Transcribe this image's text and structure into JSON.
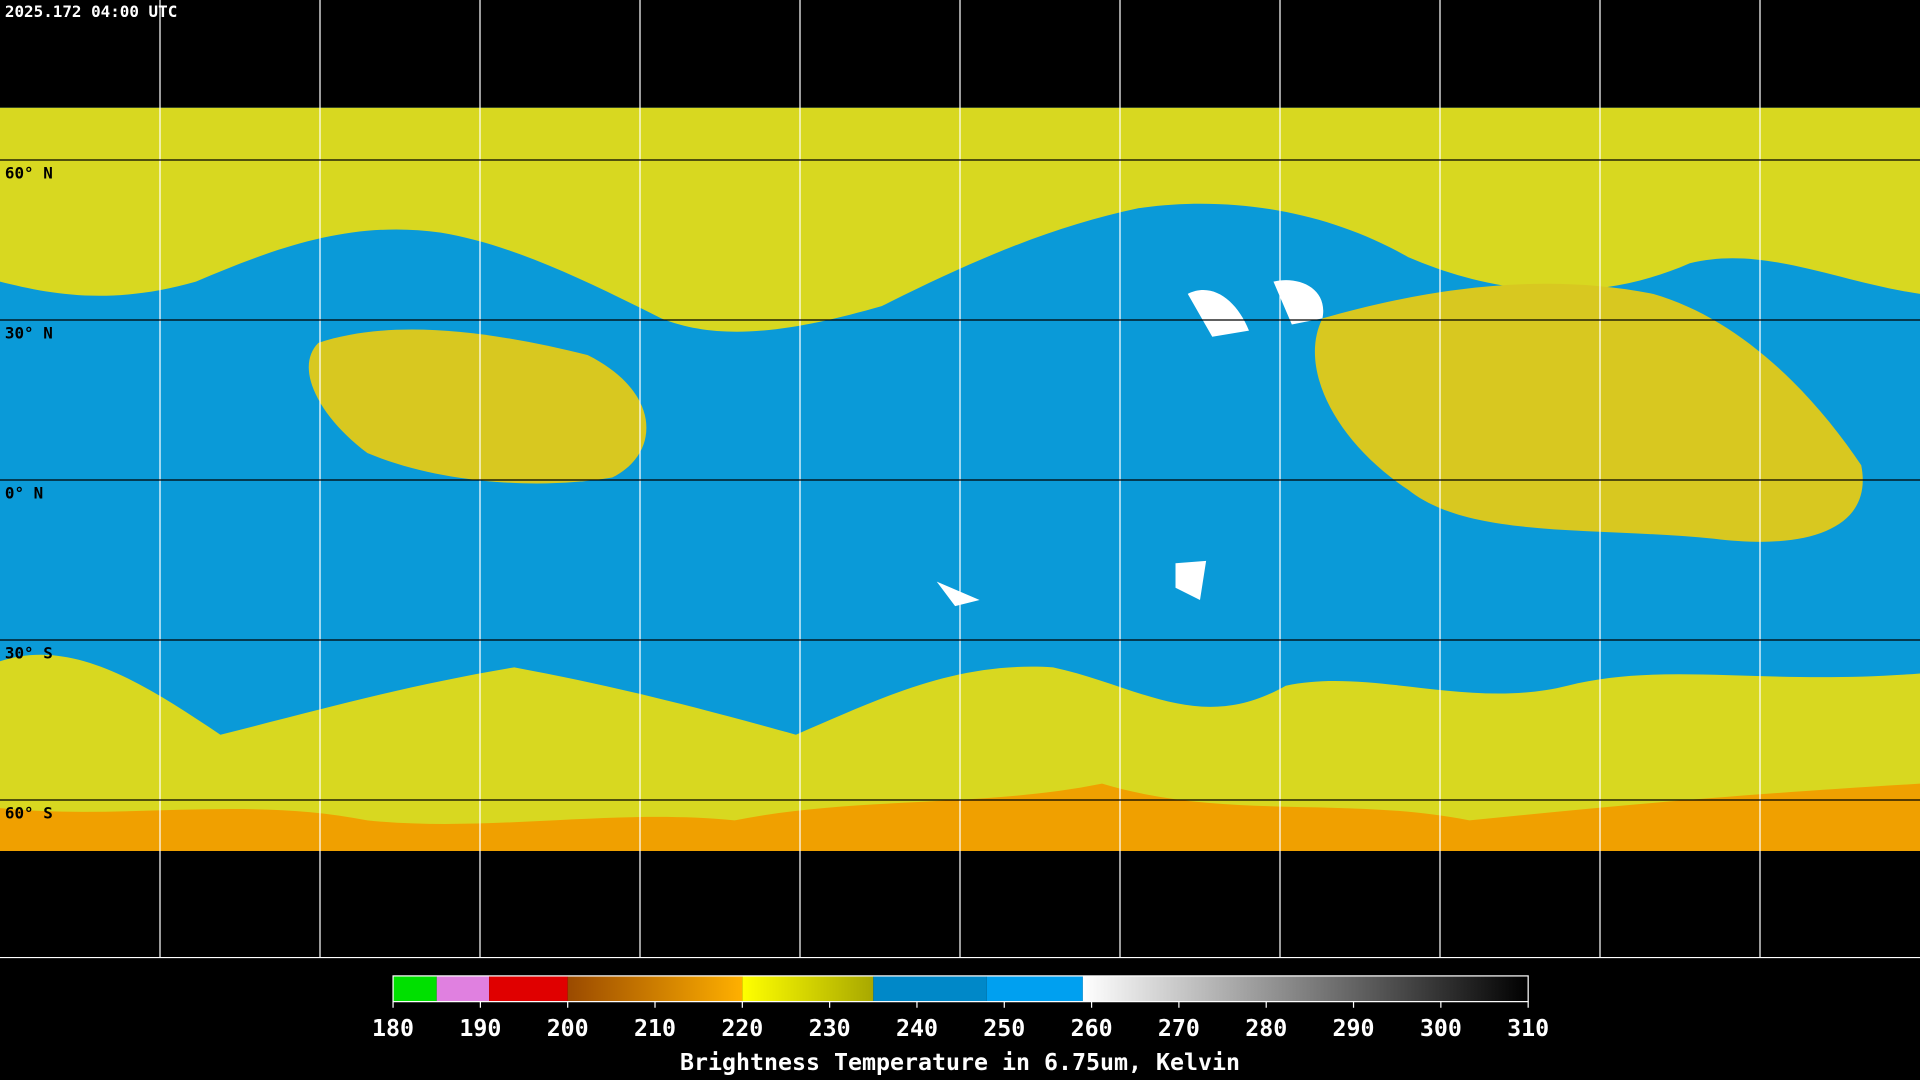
{
  "timestamp": "2025.172 04:00 UTC",
  "grid": {
    "lat_lines": [
      {
        "value": 60,
        "label": "60° N"
      },
      {
        "value": 30,
        "label": "30° N"
      },
      {
        "value": 0,
        "label": "0° N"
      },
      {
        "value": -30,
        "label": "30° S"
      },
      {
        "value": -60,
        "label": "60° S"
      }
    ]
  },
  "colorbar": {
    "title": "Brightness Temperature in 6.75um, Kelvin",
    "range": [
      180,
      310
    ],
    "ticks": [
      180,
      190,
      200,
      210,
      220,
      230,
      240,
      250,
      260,
      270,
      280,
      290,
      300,
      310
    ],
    "segments": [
      {
        "from": 180,
        "to": 185,
        "color_start": "#00e000",
        "color_end": "#00e000"
      },
      {
        "from": 185,
        "to": 191,
        "color_start": "#e080e0",
        "color_end": "#e080e0"
      },
      {
        "from": 191,
        "to": 200,
        "color_start": "#e00000",
        "color_end": "#e00000"
      },
      {
        "from": 200,
        "to": 220,
        "color_start": "#9a4a00",
        "color_end": "#ffb000"
      },
      {
        "from": 220,
        "to": 235,
        "color_start": "#ffff00",
        "color_end": "#a8a800"
      },
      {
        "from": 235,
        "to": 248,
        "color_start": "#0088c8",
        "color_end": "#0088c8"
      },
      {
        "from": 248,
        "to": 259,
        "color_start": "#00a0f0",
        "color_end": "#00a0f0"
      },
      {
        "from": 259,
        "to": 310,
        "color_start": "#ffffff",
        "color_end": "#000000"
      }
    ]
  }
}
